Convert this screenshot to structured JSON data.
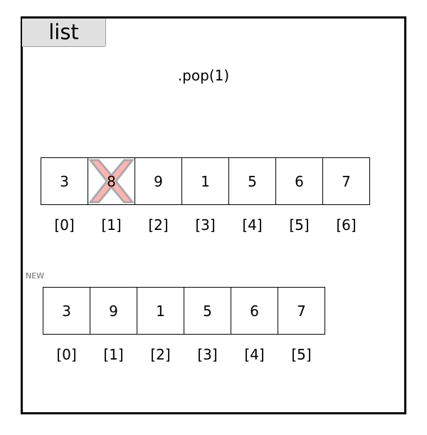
{
  "tab": {
    "label": "list"
  },
  "operation": ".pop(1)",
  "original": {
    "values": [
      "3",
      "8",
      "9",
      "1",
      "5",
      "6",
      "7"
    ],
    "indices": [
      "[0]",
      "[1]",
      "[2]",
      "[3]",
      "[4]",
      "[5]",
      "[6]"
    ],
    "removed_index": 1
  },
  "new_label": "NEW",
  "result": {
    "values": [
      "3",
      "9",
      "1",
      "5",
      "6",
      "7"
    ],
    "indices": [
      "[0]",
      "[1]",
      "[2]",
      "[3]",
      "[4]",
      "[5]"
    ]
  },
  "colors": {
    "cross_fill": "#ffb3b3",
    "cross_stroke": "#a9a9a9"
  }
}
